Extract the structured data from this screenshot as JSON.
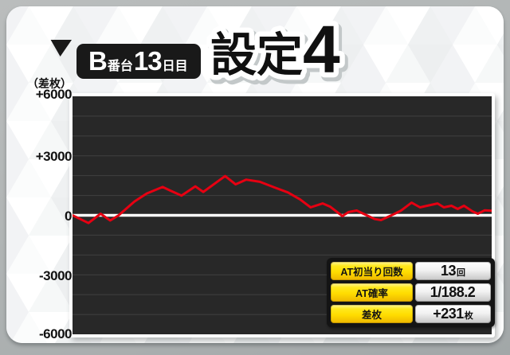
{
  "header": {
    "machine_label": {
      "machine": "B",
      "machine_suffix": "番台",
      "day": "13",
      "day_suffix": "日目"
    },
    "title": {
      "setting_text": "設定",
      "number": "4"
    }
  },
  "chart_data": {
    "type": "line",
    "ylabel": "（差枚）",
    "yticks": [
      "+6000",
      "+3000",
      "0",
      "-3000",
      "-6000"
    ],
    "ylim": [
      -6000,
      6000
    ],
    "grid_step": 1000,
    "grid_on": true,
    "line_color": "#e60012",
    "bg_color": "#282828",
    "zero_line_color": "#ffffff",
    "grid_color": "#404040",
    "series": [
      {
        "name": "差枚",
        "x_fraction": [
          0,
          0.038,
          0.067,
          0.09,
          0.11,
          0.148,
          0.177,
          0.215,
          0.232,
          0.26,
          0.293,
          0.312,
          0.364,
          0.389,
          0.414,
          0.447,
          0.48,
          0.514,
          0.543,
          0.568,
          0.597,
          0.615,
          0.644,
          0.659,
          0.678,
          0.698,
          0.721,
          0.736,
          0.765,
          0.784,
          0.809,
          0.829,
          0.846,
          0.871,
          0.886,
          0.904,
          0.919,
          0.934,
          0.954,
          0.967,
          0.983,
          1.0
        ],
        "values": [
          0,
          -390,
          80,
          -260,
          0,
          700,
          1100,
          1430,
          1260,
          990,
          1460,
          1180,
          1980,
          1560,
          1800,
          1690,
          1420,
          1150,
          800,
          400,
          600,
          430,
          -40,
          170,
          240,
          40,
          -190,
          -240,
          40,
          240,
          640,
          400,
          480,
          600,
          400,
          480,
          320,
          480,
          200,
          80,
          250,
          231
        ]
      }
    ]
  },
  "table": {
    "rows": [
      {
        "label": "AT初当り回数",
        "value": "13",
        "unit": "回"
      },
      {
        "label": "AT確率",
        "value": "1/188.2",
        "unit": ""
      },
      {
        "label": "差枚",
        "value": "+231",
        "unit": "枚"
      }
    ]
  },
  "colors": {
    "accent_yellow": "#ffdd00",
    "line_red": "#e60012",
    "bubble_black": "#191919"
  }
}
